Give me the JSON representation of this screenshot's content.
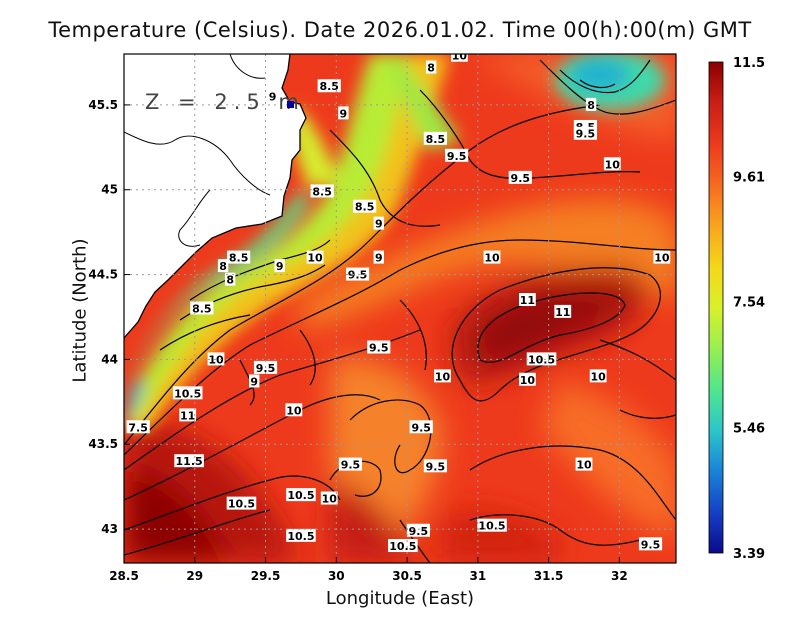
{
  "title": "Temperature (Celsius). Date 2026.01.02. Time 00(h):00(m) GMT",
  "depth_label": "Z = 2.5 m",
  "xlabel": "Longitude (East)",
  "ylabel": "Latitude (North)",
  "x_ticks": [
    "28.5",
    "29",
    "29.5",
    "30",
    "30.5",
    "31",
    "31.5",
    "32"
  ],
  "y_ticks": [
    "43",
    "43.5",
    "44",
    "44.5",
    "45",
    "45.5"
  ],
  "colorbar": {
    "labels": [
      "11.5",
      "9.61",
      "7.54",
      "5.46",
      "3.39"
    ],
    "colors_top_to_bottom": [
      "#8b0000",
      "#c81e14",
      "#ee3b1e",
      "#f66a22",
      "#f9a21c",
      "#f5d81a",
      "#d9f02a",
      "#9af04e",
      "#4fe68f",
      "#2cc6c8",
      "#1a86d9",
      "#143fc4",
      "#0a0a8a"
    ]
  },
  "chart_data": {
    "type": "heatmap",
    "title": "Temperature (Celsius). Date 2026.01.02. Time 00(h):00(m) GMT",
    "xlabel": "Longitude (East)",
    "ylabel": "Latitude (North)",
    "xlim": [
      28.5,
      32.4
    ],
    "ylim": [
      42.8,
      45.8
    ],
    "colorbar_range": [
      3.39,
      11.5
    ],
    "contour_labels": [
      {
        "lon": 29.55,
        "lat": 45.55,
        "text": "9"
      },
      {
        "lon": 29.95,
        "lat": 45.61,
        "text": "8.5"
      },
      {
        "lon": 30.05,
        "lat": 45.45,
        "text": "9"
      },
      {
        "lon": 30.67,
        "lat": 45.72,
        "text": "8"
      },
      {
        "lon": 30.87,
        "lat": 45.79,
        "text": "10"
      },
      {
        "lon": 30.7,
        "lat": 45.3,
        "text": "8.5"
      },
      {
        "lon": 30.85,
        "lat": 45.2,
        "text": "9.5"
      },
      {
        "lon": 31.8,
        "lat": 45.5,
        "text": "8"
      },
      {
        "lon": 31.76,
        "lat": 45.37,
        "text": "8.5"
      },
      {
        "lon": 31.76,
        "lat": 45.33,
        "text": "9.5"
      },
      {
        "lon": 31.95,
        "lat": 45.15,
        "text": "10"
      },
      {
        "lon": 31.3,
        "lat": 45.07,
        "text": "9.5"
      },
      {
        "lon": 29.9,
        "lat": 44.99,
        "text": "8.5"
      },
      {
        "lon": 30.2,
        "lat": 44.9,
        "text": "8.5"
      },
      {
        "lon": 30.3,
        "lat": 44.8,
        "text": "9"
      },
      {
        "lon": 32.3,
        "lat": 44.6,
        "text": "10"
      },
      {
        "lon": 29.31,
        "lat": 44.6,
        "text": "8.5"
      },
      {
        "lon": 29.2,
        "lat": 44.55,
        "text": "8"
      },
      {
        "lon": 29.6,
        "lat": 44.55,
        "text": "9"
      },
      {
        "lon": 29.85,
        "lat": 44.6,
        "text": "10"
      },
      {
        "lon": 30.15,
        "lat": 44.5,
        "text": "9.5"
      },
      {
        "lon": 30.3,
        "lat": 44.6,
        "text": "9"
      },
      {
        "lon": 31.1,
        "lat": 44.6,
        "text": "10"
      },
      {
        "lon": 29.25,
        "lat": 44.47,
        "text": "8"
      },
      {
        "lon": 29.05,
        "lat": 44.3,
        "text": "8.5"
      },
      {
        "lon": 31.35,
        "lat": 44.35,
        "text": "11"
      },
      {
        "lon": 31.6,
        "lat": 44.28,
        "text": "11"
      },
      {
        "lon": 30.3,
        "lat": 44.07,
        "text": "9.5"
      },
      {
        "lon": 29.15,
        "lat": 44.0,
        "text": "10"
      },
      {
        "lon": 29.5,
        "lat": 43.95,
        "text": "9.5"
      },
      {
        "lon": 31.45,
        "lat": 44.0,
        "text": "10.5"
      },
      {
        "lon": 30.75,
        "lat": 43.9,
        "text": "10"
      },
      {
        "lon": 31.85,
        "lat": 43.9,
        "text": "10"
      },
      {
        "lon": 29.42,
        "lat": 43.87,
        "text": "9"
      },
      {
        "lon": 28.95,
        "lat": 43.8,
        "text": "10.5"
      },
      {
        "lon": 31.35,
        "lat": 43.88,
        "text": "10"
      },
      {
        "lon": 28.95,
        "lat": 43.67,
        "text": "11"
      },
      {
        "lon": 29.7,
        "lat": 43.7,
        "text": "10"
      },
      {
        "lon": 28.6,
        "lat": 43.6,
        "text": "7.5"
      },
      {
        "lon": 30.6,
        "lat": 43.6,
        "text": "9.5"
      },
      {
        "lon": 28.96,
        "lat": 43.4,
        "text": "11.5"
      },
      {
        "lon": 30.1,
        "lat": 43.38,
        "text": "9.5"
      },
      {
        "lon": 30.7,
        "lat": 43.37,
        "text": "9.5"
      },
      {
        "lon": 31.75,
        "lat": 43.38,
        "text": "10"
      },
      {
        "lon": 29.75,
        "lat": 43.2,
        "text": "10.5"
      },
      {
        "lon": 29.95,
        "lat": 43.18,
        "text": "10"
      },
      {
        "lon": 29.33,
        "lat": 43.15,
        "text": "10.5"
      },
      {
        "lon": 31.1,
        "lat": 43.02,
        "text": "10.5"
      },
      {
        "lon": 30.58,
        "lat": 42.99,
        "text": "9.5"
      },
      {
        "lon": 29.75,
        "lat": 42.96,
        "text": "10.5"
      },
      {
        "lon": 30.47,
        "lat": 42.9,
        "text": "10.5"
      },
      {
        "lon": 32.22,
        "lat": 42.91,
        "text": "9.5"
      }
    ]
  }
}
